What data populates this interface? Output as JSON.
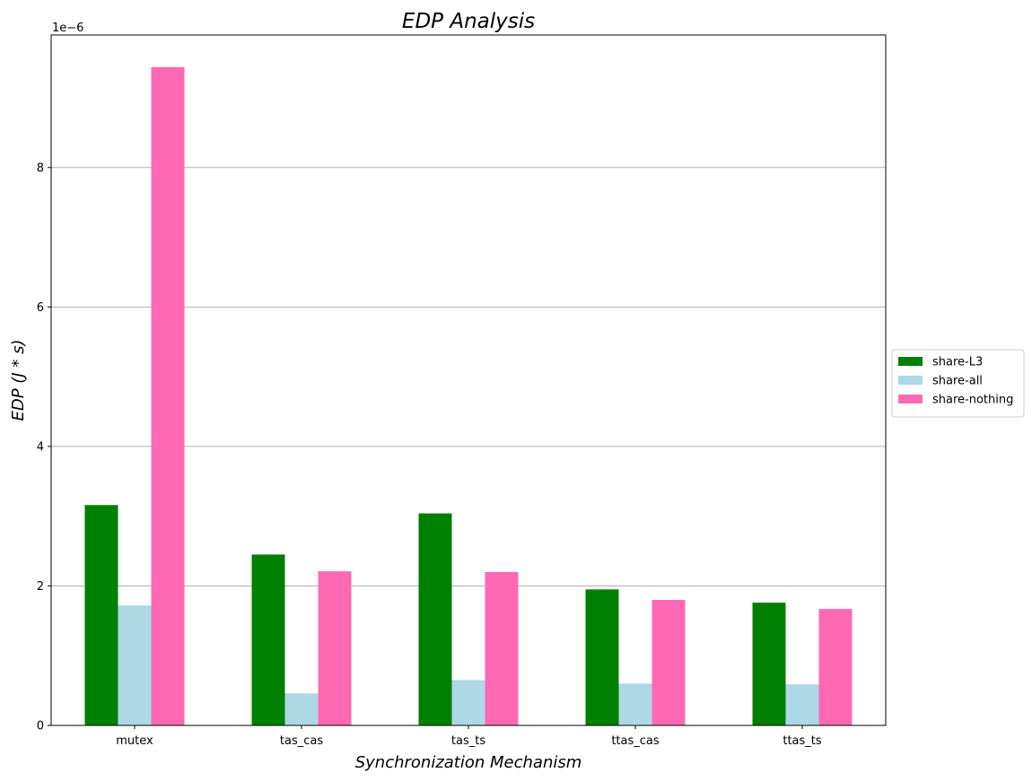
{
  "chart_data": {
    "type": "bar",
    "title": "EDP Analysis",
    "xlabel": "Synchronization Mechanism",
    "ylabel": "EDP (J * s)",
    "offset_text": "1e−6",
    "categories": [
      "mutex",
      "tas_cas",
      "tas_ts",
      "ttas_cas",
      "ttas_ts"
    ],
    "series": [
      {
        "name": "share-L3",
        "color": "#008000",
        "values": [
          3.16,
          2.45,
          3.04,
          1.95,
          1.76
        ]
      },
      {
        "name": "share-all",
        "color": "#add8e6",
        "values": [
          1.72,
          0.46,
          0.65,
          0.6,
          0.59
        ]
      },
      {
        "name": "share-nothing",
        "color": "#ff69b4",
        "values": [
          9.44,
          2.21,
          2.2,
          1.8,
          1.67
        ]
      }
    ],
    "ylim": [
      0,
      9.9
    ],
    "yticks": [
      0,
      2,
      4,
      6,
      8
    ],
    "y_grid": true,
    "x_grid": false,
    "legend_position": "right-outside-center"
  }
}
